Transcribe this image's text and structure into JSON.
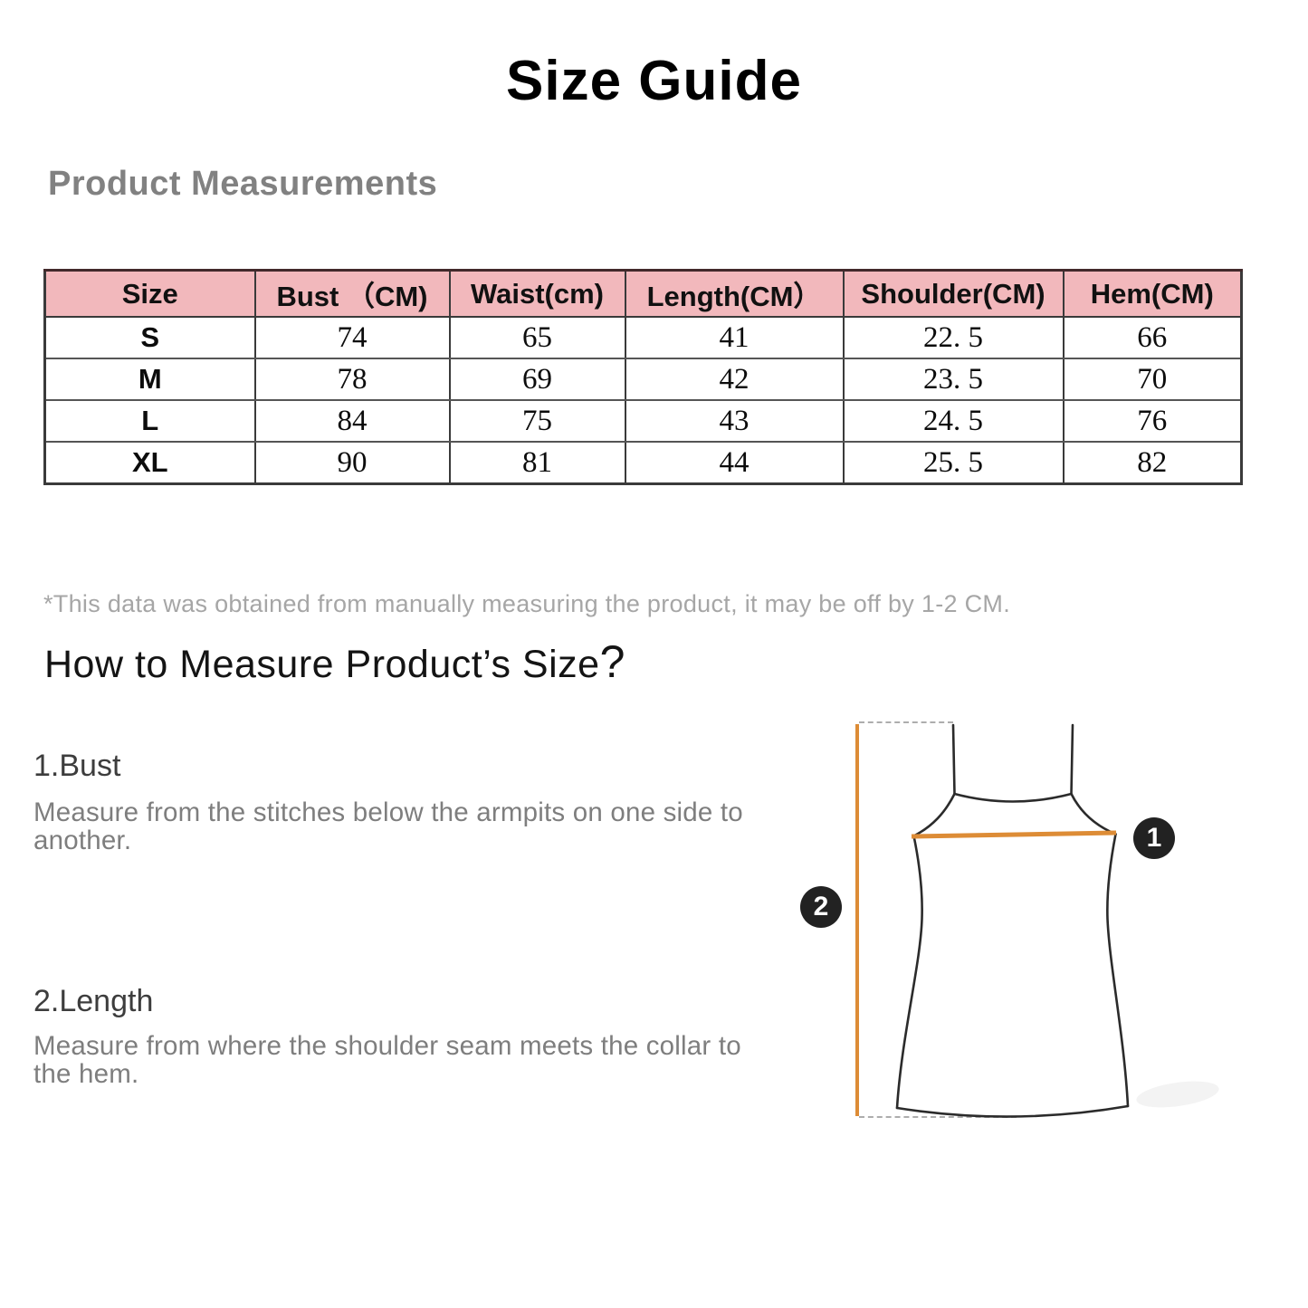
{
  "page": {
    "title": "Size Guide"
  },
  "measurements": {
    "heading": "Product Measurements",
    "table": {
      "headers": [
        "Size",
        "Bust （CM)",
        "Waist(cm)",
        "Length(CM）",
        "Shoulder(CM)",
        "Hem(CM)"
      ],
      "rows": [
        [
          "S",
          "74",
          "65",
          "41",
          "22. 5",
          "66"
        ],
        [
          "M",
          "78",
          "69",
          "42",
          "23. 5",
          "70"
        ],
        [
          "L",
          "84",
          "75",
          "43",
          "24. 5",
          "76"
        ],
        [
          "XL",
          "90",
          "81",
          "44",
          "25. 5",
          "82"
        ]
      ]
    },
    "note": "*This data was obtained from manually measuring the product, it may be off by 1-2 CM."
  },
  "how_to": {
    "heading": "How to Measure Product’s Size",
    "qmark": "?",
    "sections": [
      {
        "title": "1.Bust",
        "line1": "Measure from the stitches below the armpits on one side to",
        "line2": "another."
      },
      {
        "title": "2.Length",
        "line1": "Measure from where the shoulder seam meets the collar to",
        "line2": "the hem."
      }
    ]
  },
  "diagram": {
    "badge1": "1",
    "badge2": "2"
  },
  "colors": {
    "pink_header": "#f2b8bc",
    "accent_orange": "#dd8c36",
    "badge_black": "#222222",
    "outline_black": "#2b2b2b",
    "dash_gray": "#adadad"
  }
}
